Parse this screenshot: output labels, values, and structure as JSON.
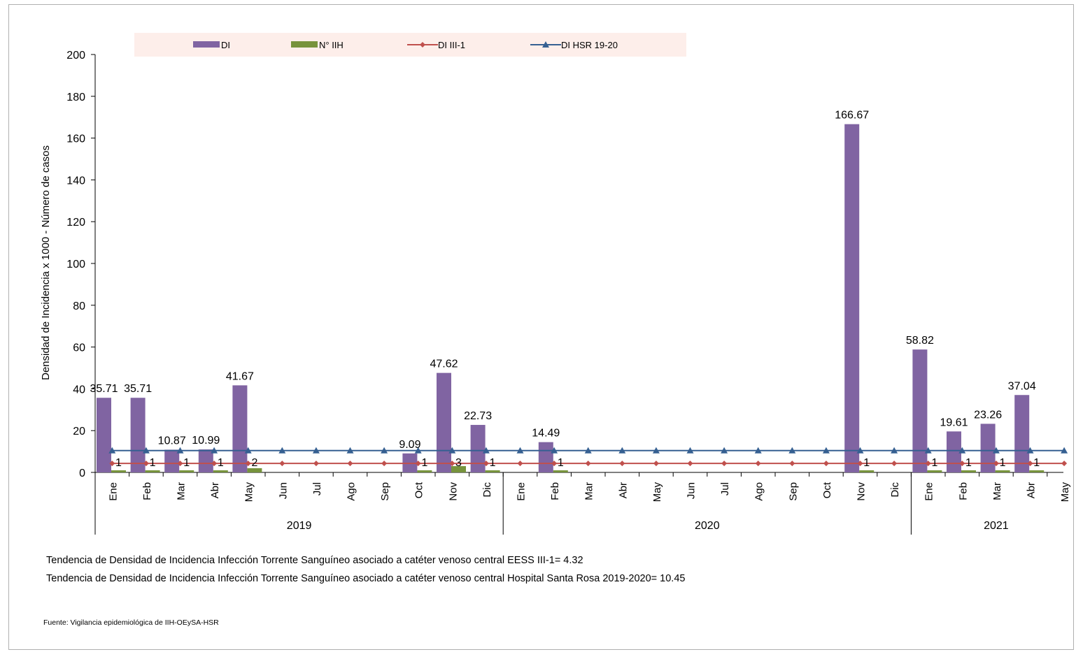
{
  "chart_data": {
    "type": "bar",
    "ylabel": "Densidad de Incidencia x 1000 - Número de casos",
    "ylim": [
      0,
      200
    ],
    "yticks": [
      "0",
      "20",
      "40",
      "60",
      "80",
      "100",
      "120",
      "140",
      "160",
      "180",
      "200"
    ],
    "grid": false,
    "legend_position": "top",
    "categories": [
      "Ene",
      "Feb",
      "Mar",
      "Abr",
      "May",
      "Jun",
      "Jul",
      "Ago",
      "Sep",
      "Oct",
      "Nov",
      "Dic",
      "Ene",
      "Feb",
      "Mar",
      "Abr",
      "May",
      "Jun",
      "Jul",
      "Ago",
      "Sep",
      "Oct",
      "Nov",
      "Dic",
      "Ene",
      "Feb",
      "Mar",
      "Abr",
      "May"
    ],
    "years": [
      {
        "label": "2019",
        "count": 12
      },
      {
        "label": "2020",
        "count": 12
      },
      {
        "label": "2021",
        "count": 5
      }
    ],
    "series": [
      {
        "name": "DI",
        "kind": "bar",
        "color": "#8064a2",
        "values": [
          35.71,
          35.71,
          10.87,
          10.99,
          41.67,
          null,
          null,
          null,
          null,
          9.09,
          47.62,
          22.73,
          null,
          14.49,
          null,
          null,
          null,
          null,
          null,
          null,
          null,
          null,
          166.67,
          null,
          58.82,
          19.61,
          23.26,
          37.04,
          null
        ],
        "labels": [
          "35.71",
          "35.71",
          "10.87",
          "10.99",
          "41.67",
          "",
          "",
          "",
          "",
          "9.09",
          "47.62",
          "22.73",
          "",
          "14.49",
          "",
          "",
          "",
          "",
          "",
          "",
          "",
          "",
          "166.67",
          "",
          "58.82",
          "19.61",
          "23.26",
          "37.04",
          ""
        ]
      },
      {
        "name": "N° IIH",
        "kind": "bar",
        "color": "#77933c",
        "values": [
          1,
          1,
          1,
          1,
          2,
          null,
          null,
          null,
          null,
          1,
          3,
          1,
          null,
          1,
          null,
          null,
          null,
          null,
          null,
          null,
          null,
          null,
          1,
          null,
          1,
          1,
          1,
          1,
          null
        ],
        "labels": [
          "1",
          "1",
          "1",
          "1",
          "2",
          "",
          "",
          "",
          "",
          "1",
          "3",
          "1",
          "",
          "1",
          "",
          "",
          "",
          "",
          "",
          "",
          "",
          "",
          "1",
          "",
          "1",
          "1",
          "1",
          "1",
          ""
        ]
      },
      {
        "name": "DI III-1",
        "kind": "line",
        "color": "#c0504d",
        "marker": "diamond",
        "values": [
          4.32,
          4.32,
          4.32,
          4.32,
          4.32,
          4.32,
          4.32,
          4.32,
          4.32,
          4.32,
          4.32,
          4.32,
          4.32,
          4.32,
          4.32,
          4.32,
          4.32,
          4.32,
          4.32,
          4.32,
          4.32,
          4.32,
          4.32,
          4.32,
          4.32,
          4.32,
          4.32,
          4.32,
          4.32
        ]
      },
      {
        "name": "DI HSR 19-20",
        "kind": "line",
        "color": "#366092",
        "marker": "triangle",
        "values": [
          10.45,
          10.45,
          10.45,
          10.45,
          10.45,
          10.45,
          10.45,
          10.45,
          10.45,
          10.45,
          10.45,
          10.45,
          10.45,
          10.45,
          10.45,
          10.45,
          10.45,
          10.45,
          10.45,
          10.45,
          10.45,
          10.45,
          10.45,
          10.45,
          10.45,
          10.45,
          10.45,
          10.45,
          10.45
        ]
      }
    ],
    "legend_bg": "#fdeeea"
  },
  "notes": {
    "line1": "Tendencia de Densidad de Incidencia Infección Torrente Sanguíneo asociado a catéter venoso central EESS III-1= 4.32",
    "line2": "Tendencia de Densidad de Incidencia Infección Torrente Sanguíneo asociado a catéter venoso central Hospital Santa Rosa 2019-2020=  10.45"
  },
  "source": "Fuente: Vigilancia epidemiológica de IIH-OEySA-HSR"
}
